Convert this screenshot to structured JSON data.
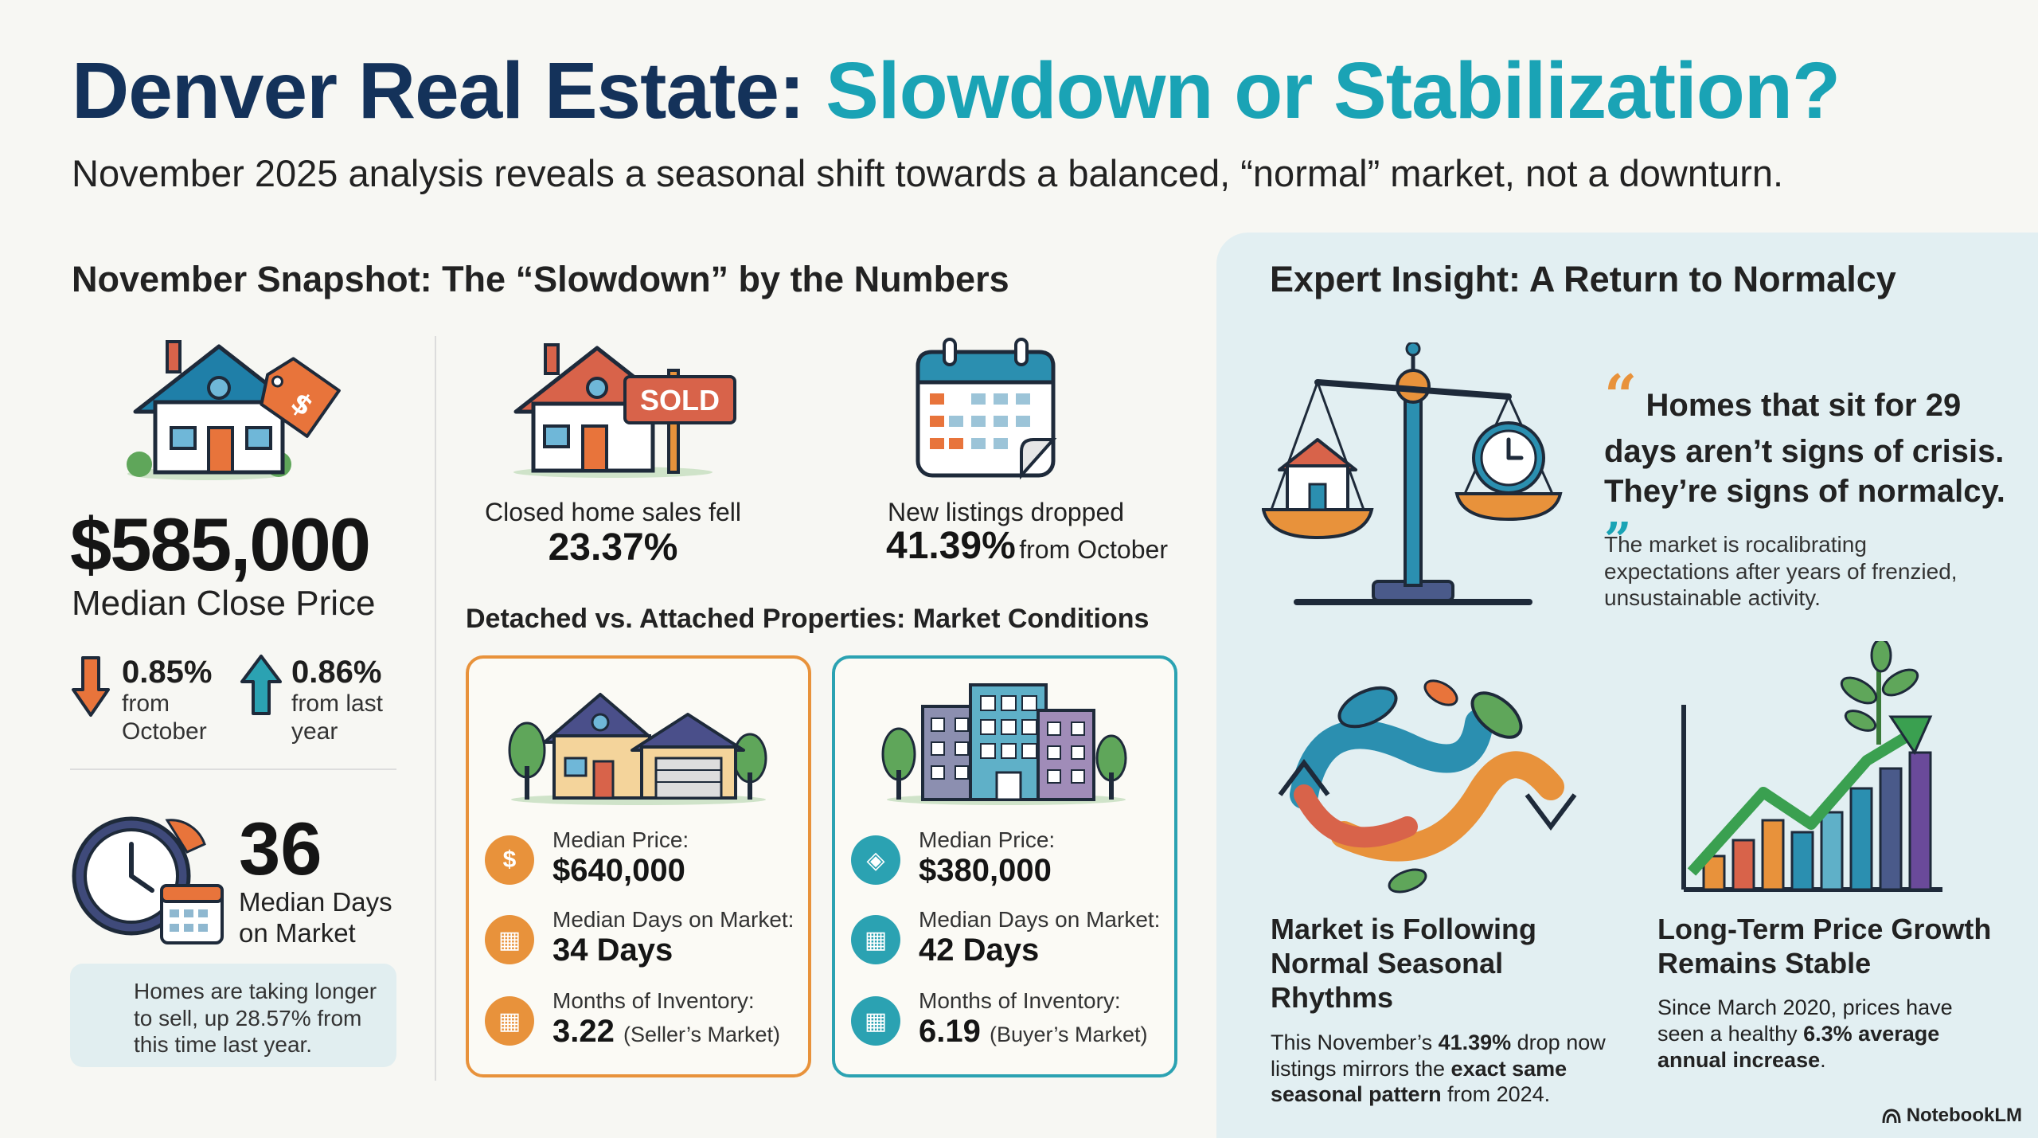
{
  "title": {
    "part1": "Denver Real Estate: ",
    "part2": "Slowdown or Stabilization?"
  },
  "subtitle": "November 2025 analysis reveals a seasonal shift towards a balanced, “normal” market, not a downturn.",
  "snapshot": {
    "heading": "November Snapshot: The “Slowdown” by the Numbers",
    "price_tag_symbol": "$",
    "median_price": "$585,000",
    "median_price_label": "Median Close Price",
    "change_month": {
      "pct": "0.85%",
      "line1": "from",
      "line2": "October"
    },
    "change_year": {
      "pct": "0.86%",
      "line1": "from last",
      "line2": "year"
    },
    "days": "36",
    "days_label_1": "Median Days",
    "days_label_2": "on Market",
    "days_callout": "Homes are taking longer to sell, up 28.57% from this time last year."
  },
  "sales": {
    "sign": "SOLD",
    "label": "Closed home sales fell",
    "pct": "23.37%"
  },
  "listings": {
    "label": "New listings dropped",
    "pct": "41.39%",
    "tail": "from October"
  },
  "comparison": {
    "heading": "Detached vs. Attached Properties: Market Conditions",
    "detached": {
      "price_label": "Median Price:",
      "price": "$640,000",
      "days_label": "Median Days on Market:",
      "days": "34 Days",
      "inv_label": "Months of Inventory:",
      "inv": "3.22",
      "inv_note": "(Seller’s Market)"
    },
    "attached": {
      "price_label": "Median Price:",
      "price": "$380,000",
      "days_label": "Median Days on Market:",
      "days": "42 Days",
      "inv_label": "Months of Inventory:",
      "inv": "6.19",
      "inv_note": "(Buyer’s Market)"
    }
  },
  "insight": {
    "heading": "Expert Insight: A Return to Normalcy",
    "quote": "Homes that sit for 29 days aren’t signs of crisis. They’re signs of normalcy.",
    "quote_sub": "The market is rocalibrating expectations after years of frenzied, unsustainable activity.",
    "feature1": {
      "title": "Market is Following Normal Seasonal Rhythms",
      "text_a": "This November’s ",
      "text_b": "41.39%",
      "text_c": " drop now listings mirrors the ",
      "text_d": "exact same seasonal pattern",
      "text_e": " from 2024."
    },
    "feature2": {
      "title": "Long-Term Price Growth Remains Stable",
      "text_a": "Since March 2020, prices have seen a healthy ",
      "text_b": "6.3% average annual increase",
      "text_c": "."
    }
  },
  "brand": "NotebookLM",
  "colors": {
    "navy": "#14325a",
    "teal": "#1aa3b5",
    "orange": "#e8923b",
    "panel": "#e2eff2"
  }
}
